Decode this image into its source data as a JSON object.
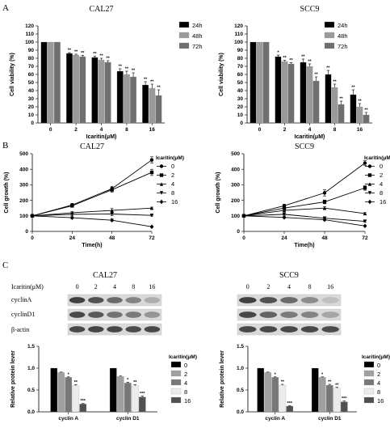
{
  "panel_labels": [
    "A",
    "B",
    "C"
  ],
  "chart_data": [
    {
      "id": "A-CAL27",
      "type": "bar",
      "title": "CAL27",
      "xlabel": "Icaritin(μM)",
      "ylabel": "Cell viability (%)",
      "ylim": [
        0,
        120
      ],
      "yticks": [
        0,
        10,
        20,
        30,
        40,
        50,
        60,
        70,
        80,
        90,
        100,
        110,
        120
      ],
      "categories": [
        "0",
        "2",
        "4",
        "8",
        "16"
      ],
      "colors": [
        "#000000",
        "#9a9a9a",
        "#6f6f6f"
      ],
      "legend_position": "right",
      "series": [
        {
          "name": "24h",
          "values": [
            100,
            86,
            81,
            64,
            47
          ],
          "errors": [
            0,
            1,
            1.5,
            3,
            4
          ],
          "sig": [
            "",
            "**",
            "**",
            "**",
            "**"
          ]
        },
        {
          "name": "48h",
          "values": [
            100,
            84,
            78,
            60,
            43
          ],
          "errors": [
            0,
            1,
            2,
            4,
            5
          ],
          "sig": [
            "",
            "**",
            "**",
            "**",
            "**"
          ]
        },
        {
          "name": "72h",
          "values": [
            100,
            82,
            75,
            57,
            34
          ],
          "errors": [
            0,
            1.5,
            2,
            5,
            7
          ],
          "sig": [
            "",
            "**",
            "**",
            "**",
            "**"
          ]
        }
      ]
    },
    {
      "id": "A-SCC9",
      "type": "bar",
      "title": "SCC9",
      "xlabel": "Icaritin(μM)",
      "ylabel": "Cell viability (%)",
      "ylim": [
        0,
        120
      ],
      "yticks": [
        0,
        10,
        20,
        30,
        40,
        50,
        60,
        70,
        80,
        90,
        100,
        110,
        120
      ],
      "categories": [
        "0",
        "2",
        "4",
        "8",
        "16"
      ],
      "colors": [
        "#000000",
        "#9a9a9a",
        "#6f6f6f"
      ],
      "legend_position": "right",
      "series": [
        {
          "name": "24h",
          "values": [
            100,
            82,
            75,
            60,
            35
          ],
          "errors": [
            0,
            2,
            4,
            5,
            6
          ],
          "sig": [
            "",
            "*",
            "**",
            "**",
            "**"
          ]
        },
        {
          "name": "48h",
          "values": [
            100,
            76,
            70,
            44,
            20
          ],
          "errors": [
            0,
            1.5,
            3,
            4,
            4
          ],
          "sig": [
            "",
            "**",
            "**",
            "**",
            "**"
          ]
        },
        {
          "name": "72h",
          "values": [
            100,
            73,
            52,
            23,
            10
          ],
          "errors": [
            0,
            1.5,
            5,
            4,
            3
          ],
          "sig": [
            "",
            "**",
            "**",
            "**",
            "**"
          ]
        }
      ]
    },
    {
      "id": "B-CAL27",
      "type": "line",
      "title": "CAL27",
      "xlabel": "Time(h)",
      "ylabel": "Cell growth (%)",
      "x": [
        0,
        24,
        48,
        72
      ],
      "xlim": [
        0,
        72
      ],
      "ylim": [
        0,
        500
      ],
      "yticks": [
        0,
        100,
        200,
        300,
        400,
        500
      ],
      "legend_title": "Icaritin(μM)",
      "legend_position": "right",
      "series": [
        {
          "name": "0",
          "values": [
            100,
            170,
            275,
            460
          ],
          "errors": [
            0,
            10,
            15,
            20
          ],
          "marker": "circle"
        },
        {
          "name": "2",
          "values": [
            100,
            165,
            268,
            380
          ],
          "errors": [
            0,
            10,
            15,
            20
          ],
          "marker": "square"
        },
        {
          "name": "4",
          "values": [
            100,
            120,
            135,
            150
          ],
          "errors": [
            0,
            8,
            12,
            6
          ],
          "marker": "triangle-up"
        },
        {
          "name": "8",
          "values": [
            100,
            110,
            112,
            103
          ],
          "errors": [
            0,
            8,
            10,
            5
          ],
          "marker": "triangle-down"
        },
        {
          "name": "16",
          "values": [
            100,
            88,
            72,
            30
          ],
          "errors": [
            0,
            6,
            8,
            4
          ],
          "marker": "diamond"
        }
      ]
    },
    {
      "id": "B-SCC9",
      "type": "line",
      "title": "SCC9",
      "xlabel": "Time(h)",
      "ylabel": "Cell growth (%)",
      "x": [
        0,
        24,
        48,
        72
      ],
      "xlim": [
        0,
        72
      ],
      "ylim": [
        0,
        500
      ],
      "yticks": [
        0,
        100,
        200,
        300,
        400,
        500
      ],
      "legend_title": "Icaritin(μM)",
      "legend_position": "right",
      "series": [
        {
          "name": "0",
          "values": [
            100,
            165,
            248,
            440
          ],
          "errors": [
            0,
            10,
            20,
            15
          ],
          "marker": "circle"
        },
        {
          "name": "2",
          "values": [
            100,
            150,
            190,
            280
          ],
          "errors": [
            0,
            8,
            12,
            15
          ],
          "marker": "square"
        },
        {
          "name": "4",
          "values": [
            100,
            135,
            150,
            115
          ],
          "errors": [
            0,
            8,
            10,
            6
          ],
          "marker": "triangle-up"
        },
        {
          "name": "8",
          "values": [
            100,
            110,
            85,
            65
          ],
          "errors": [
            0,
            6,
            6,
            5
          ],
          "marker": "triangle-down"
        },
        {
          "name": "16",
          "values": [
            100,
            90,
            75,
            35
          ],
          "errors": [
            0,
            5,
            5,
            4
          ],
          "marker": "diamond"
        }
      ]
    },
    {
      "id": "C-CAL27-bar",
      "type": "bar",
      "ylabel": "Relative protein lever",
      "ylim": [
        0,
        1.5
      ],
      "yticks": [
        0.0,
        0.5,
        1.0,
        1.5
      ],
      "categories": [
        "cyclin A",
        "cyclin D1"
      ],
      "legend_title": "Icaritin(μM)",
      "legend_position": "right",
      "colors": [
        "#000000",
        "#a0a0a0",
        "#777777",
        "#ececec",
        "#505050"
      ],
      "series": [
        {
          "name": "0",
          "values": [
            1.0,
            1.0
          ],
          "errors": [
            0,
            0
          ],
          "sig": [
            "",
            ""
          ]
        },
        {
          "name": "2",
          "values": [
            0.9,
            0.81
          ],
          "errors": [
            0.01,
            0.01
          ],
          "sig": [
            "",
            ""
          ]
        },
        {
          "name": "4",
          "values": [
            0.79,
            0.66
          ],
          "errors": [
            0.01,
            0.02
          ],
          "sig": [
            "*",
            "*"
          ]
        },
        {
          "name": "8",
          "values": [
            0.6,
            0.6
          ],
          "errors": [
            0.02,
            0.02
          ],
          "sig": [
            "**",
            "**"
          ]
        },
        {
          "name": "16",
          "values": [
            0.18,
            0.34
          ],
          "errors": [
            0.01,
            0.02
          ],
          "sig": [
            "***",
            "***"
          ]
        }
      ]
    },
    {
      "id": "C-SCC9-bar",
      "type": "bar",
      "ylabel": "Relative protein lever",
      "ylim": [
        0,
        1.5
      ],
      "yticks": [
        0.0,
        0.5,
        1.0,
        1.5
      ],
      "categories": [
        "cyclin A",
        "cyclin D1"
      ],
      "legend_title": "Icaritin(μM)",
      "legend_position": "right",
      "colors": [
        "#000000",
        "#a0a0a0",
        "#777777",
        "#ececec",
        "#505050"
      ],
      "series": [
        {
          "name": "0",
          "values": [
            1.0,
            1.0
          ],
          "errors": [
            0,
            0
          ],
          "sig": [
            "",
            ""
          ]
        },
        {
          "name": "2",
          "values": [
            0.9,
            0.79
          ],
          "errors": [
            0.01,
            0.01
          ],
          "sig": [
            "",
            "*"
          ]
        },
        {
          "name": "4",
          "values": [
            0.79,
            0.61
          ],
          "errors": [
            0.01,
            0.02
          ],
          "sig": [
            "*",
            "**"
          ]
        },
        {
          "name": "8",
          "values": [
            0.61,
            0.54
          ],
          "errors": [
            0.02,
            0.02
          ],
          "sig": [
            "**",
            "**"
          ]
        },
        {
          "name": "16",
          "values": [
            0.13,
            0.23
          ],
          "errors": [
            0.01,
            0.02
          ],
          "sig": [
            "***",
            "***"
          ]
        }
      ]
    }
  ],
  "western_blot": {
    "cal27": {
      "title": "CAL27",
      "dose_label": "Icaritin(μM)",
      "doses": [
        "0",
        "2",
        "4",
        "8",
        "16"
      ],
      "row_labels": [
        "cyclinA",
        "cyclinD1",
        "β-actin"
      ],
      "intensity": [
        [
          0.95,
          0.85,
          0.7,
          0.55,
          0.3
        ],
        [
          0.9,
          0.8,
          0.65,
          0.6,
          0.45
        ],
        [
          0.9,
          0.92,
          0.9,
          0.88,
          0.9
        ]
      ]
    },
    "scc9": {
      "title": "SCC9",
      "doses": [
        "0",
        "2",
        "4",
        "8",
        "16"
      ],
      "intensity": [
        [
          0.95,
          0.85,
          0.7,
          0.5,
          0.2
        ],
        [
          0.9,
          0.75,
          0.6,
          0.55,
          0.35
        ],
        [
          0.9,
          0.9,
          0.9,
          0.9,
          0.88
        ]
      ]
    }
  }
}
